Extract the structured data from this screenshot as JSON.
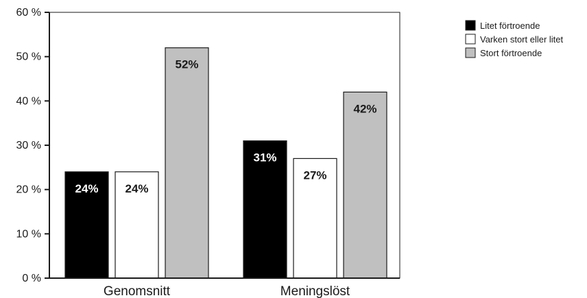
{
  "chart_data": {
    "type": "bar",
    "categories": [
      "Genomsnitt",
      "Meningslöst"
    ],
    "series": [
      {
        "name": "Litet förtroende",
        "values": [
          24,
          31
        ],
        "color": "#000000",
        "label_color": "#ffffff"
      },
      {
        "name": "Varken stort eller litet",
        "values": [
          24,
          27
        ],
        "color": "#ffffff",
        "label_color": "#1a1a1a"
      },
      {
        "name": "Stort förtroende",
        "values": [
          52,
          42
        ],
        "color": "#c0c0c0",
        "label_color": "#1a1a1a"
      }
    ],
    "data_labels": [
      [
        "24%",
        "31%"
      ],
      [
        "24%",
        "27%"
      ],
      [
        "52%",
        "42%"
      ]
    ],
    "yticks": [
      0,
      10,
      20,
      30,
      40,
      50,
      60
    ],
    "ytick_labels": [
      "0 %",
      "10 %",
      "20 %",
      "30 %",
      "40 %",
      "50 %",
      "60 %"
    ],
    "ylim": [
      0,
      60
    ],
    "title": "",
    "xlabel": "",
    "ylabel": "",
    "grid": false,
    "legend_position": "top-right"
  }
}
